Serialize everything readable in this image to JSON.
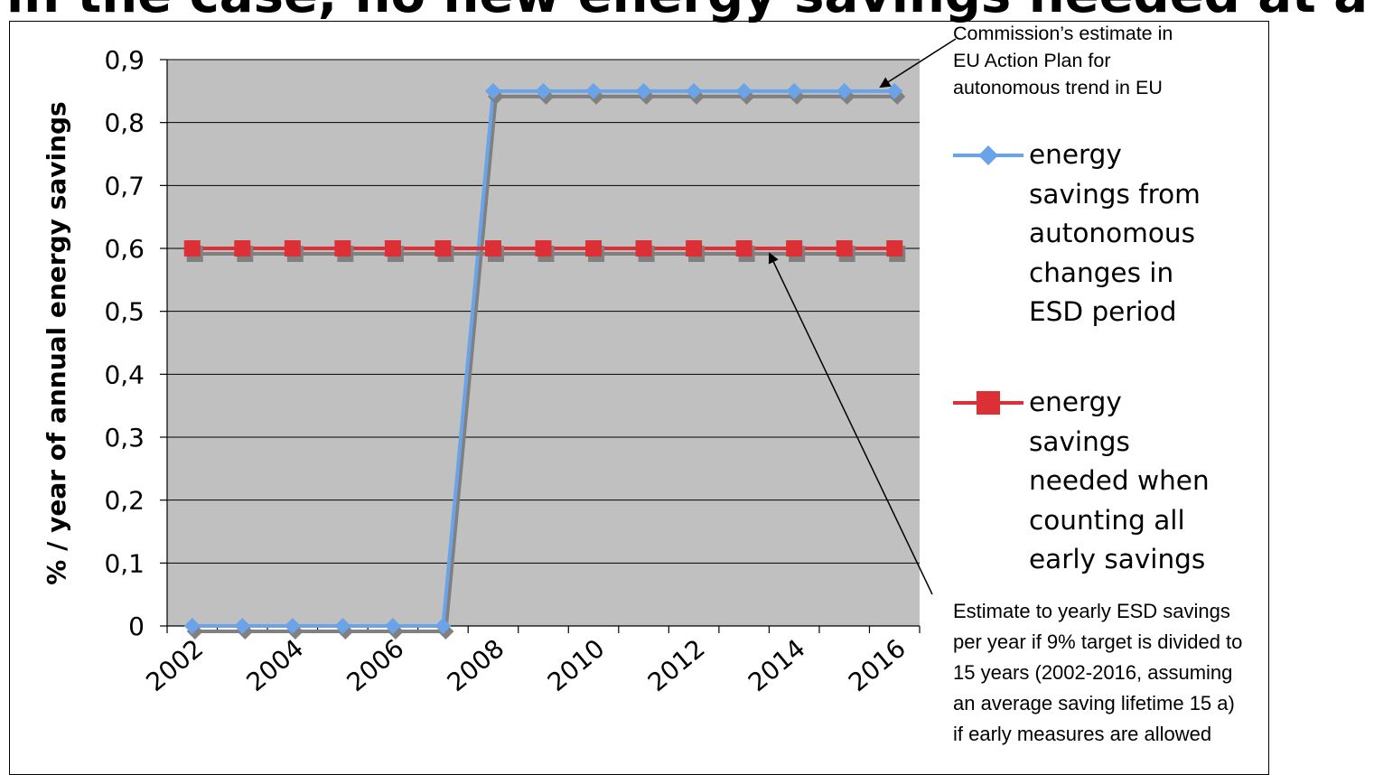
{
  "page": {
    "title_fragment": "in the case, no new energy savings needed at a"
  },
  "annotations": {
    "top_line1": "Commission’s estimate in",
    "top_line2": "EU Action Plan for",
    "top_line3": "autonomous trend in EU",
    "bottom_line1": "Estimate to yearly ESD savings",
    "bottom_line2": "per year if 9% target is divided to",
    "bottom_line3": "15 years (2002-2016, assuming",
    "bottom_line4": "an average saving lifetime 15 a)",
    "bottom_line5": "if early measures are allowed"
  },
  "chart_data": {
    "type": "line",
    "x": [
      2002,
      2003,
      2004,
      2005,
      2006,
      2007,
      2008,
      2009,
      2010,
      2011,
      2012,
      2013,
      2014,
      2015,
      2016
    ],
    "x_tick_labels": [
      "2002",
      "2004",
      "2006",
      "2008",
      "2010",
      "2012",
      "2014",
      "2016"
    ],
    "ylabel": "% / year of annual energy savings",
    "ylim": [
      0,
      0.9
    ],
    "y_tick_labels": [
      "0",
      "0,1",
      "0,2",
      "0,3",
      "0,4",
      "0,5",
      "0,6",
      "0,7",
      "0,8",
      "0,9"
    ],
    "grid": "horizontal",
    "legend_position": "right",
    "plot_background": "#c0c0c0",
    "series": [
      {
        "name": "energy savings from autonomous changes in ESD period",
        "legend_lines": [
          "energy",
          "savings from",
          "autonomous",
          "changes in",
          "ESD period"
        ],
        "color": "#6ba3e8",
        "marker": "diamond",
        "values": [
          0,
          0,
          0,
          0,
          0,
          0,
          0.85,
          0.85,
          0.85,
          0.85,
          0.85,
          0.85,
          0.85,
          0.85,
          0.85
        ]
      },
      {
        "name": "energy savings needed when counting all early savings",
        "legend_lines": [
          "energy",
          "savings",
          "needed when",
          "counting all",
          "early savings"
        ],
        "color": "#dd2f36",
        "marker": "square",
        "values": [
          0.6,
          0.6,
          0.6,
          0.6,
          0.6,
          0.6,
          0.6,
          0.6,
          0.6,
          0.6,
          0.6,
          0.6,
          0.6,
          0.6,
          0.6
        ]
      }
    ]
  }
}
